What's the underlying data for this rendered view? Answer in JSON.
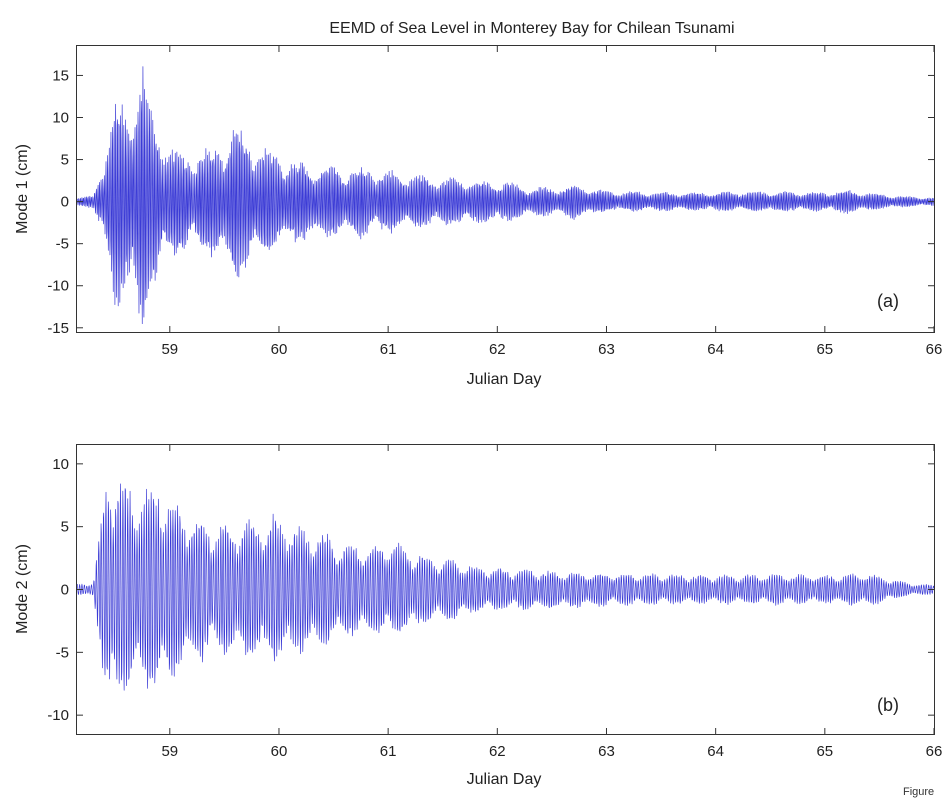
{
  "figure": {
    "title": "EEMD of Sea Level in Monterey Bay for Chilean Tsunami",
    "footer": "Figure"
  },
  "colors": {
    "signal": "#3b3bd6",
    "axis": "#333333",
    "text": "#222222"
  },
  "chart_data": [
    {
      "type": "line",
      "panel_label": "(a)",
      "xlabel": "Julian Day",
      "ylabel": "Mode 1 (cm)",
      "xlim": [
        58.15,
        66.0
      ],
      "ylim": [
        -15.5,
        18.5
      ],
      "xticks": [
        59,
        60,
        61,
        62,
        63,
        64,
        65,
        66
      ],
      "xtick_labels": [
        "59",
        "60",
        "61",
        "62",
        "63",
        "64",
        "65",
        "66"
      ],
      "yticks": [
        -15,
        -10,
        -5,
        0,
        5,
        10,
        15
      ],
      "ytick_labels": [
        "-15",
        "-10",
        "-5",
        "0",
        "5",
        "10",
        "15"
      ],
      "grid": false,
      "series": [
        {
          "x": [
            58.15,
            58.3,
            58.4,
            58.45,
            58.5,
            58.6,
            58.7,
            58.75,
            58.8,
            58.9,
            59.0,
            59.2,
            59.4,
            59.5,
            59.6,
            59.7,
            59.8,
            60.0,
            60.2,
            60.5,
            60.8,
            61.0,
            61.2,
            61.5,
            61.8,
            62.0,
            62.1,
            62.3,
            62.6,
            62.7,
            63.0,
            63.5,
            64.0,
            64.5,
            65.0,
            65.2,
            65.5,
            65.7,
            66.0
          ],
          "y": [
            0.5,
            0.8,
            6.0,
            9.0,
            13.8,
            12.0,
            16.0,
            18.0,
            12.5,
            10.0,
            7.0,
            6.0,
            7.0,
            8.0,
            10.0,
            9.0,
            7.0,
            6.0,
            5.0,
            4.5,
            4.5,
            4.0,
            3.5,
            3.0,
            2.8,
            2.6,
            2.5,
            1.8,
            1.8,
            2.2,
            1.3,
            1.2,
            1.2,
            1.3,
            1.2,
            1.5,
            1.0,
            0.7,
            0.5
          ]
        }
      ]
    },
    {
      "type": "line",
      "panel_label": "(b)",
      "xlabel": "Julian Day",
      "ylabel": "Mode 2 (cm)",
      "xlim": [
        58.15,
        66.0
      ],
      "ylim": [
        -11.5,
        11.5
      ],
      "xticks": [
        59,
        60,
        61,
        62,
        63,
        64,
        65,
        66
      ],
      "xtick_labels": [
        "59",
        "60",
        "61",
        "62",
        "63",
        "64",
        "65",
        "66"
      ],
      "yticks": [
        -10,
        -5,
        0,
        5,
        10
      ],
      "ytick_labels": [
        "-10",
        "-5",
        "0",
        "5",
        "10"
      ],
      "grid": false,
      "series": [
        {
          "x": [
            58.15,
            58.3,
            58.4,
            58.45,
            58.5,
            58.6,
            58.7,
            58.8,
            58.9,
            59.0,
            59.2,
            59.4,
            59.6,
            59.8,
            60.0,
            60.2,
            60.4,
            60.6,
            60.8,
            61.0,
            61.2,
            61.4,
            61.6,
            61.8,
            62.0,
            62.5,
            63.0,
            63.5,
            64.0,
            64.5,
            65.0,
            65.4,
            65.6,
            65.8,
            66.0
          ],
          "y": [
            0.5,
            0.6,
            8.0,
            11.0,
            10.0,
            9.0,
            8.5,
            8.5,
            9.5,
            8.0,
            6.5,
            5.5,
            5.8,
            6.0,
            6.2,
            5.2,
            4.8,
            4.0,
            3.8,
            4.2,
            3.5,
            2.8,
            2.5,
            2.0,
            1.8,
            1.6,
            1.4,
            1.3,
            1.2,
            1.3,
            1.2,
            1.4,
            0.9,
            0.5,
            0.4
          ]
        }
      ]
    }
  ]
}
